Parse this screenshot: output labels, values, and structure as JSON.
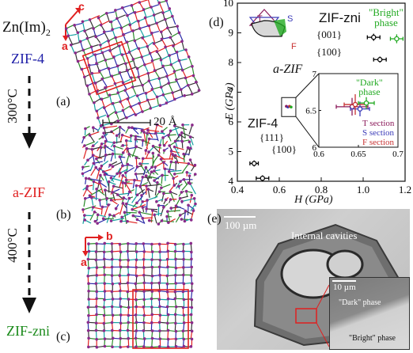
{
  "left": {
    "formula": "Zn(Im)",
    "formula_sub": "2",
    "phase_top": "ZIF-4",
    "temp1": "300°C",
    "phase_mid": "a-ZIF",
    "temp2": "400°C",
    "phase_bottom": "ZIF-zni",
    "axis_c": "c",
    "axis_a": "a",
    "axis_b": "b",
    "panel_a": "(a)",
    "panel_b": "(b)",
    "panel_c": "(c)",
    "scale_bar": "20 Å",
    "colors": {
      "blue": "#1f1fa8",
      "red": "#e02020",
      "green": "#1a8a1a"
    }
  },
  "panel_d": {
    "label": "(d)",
    "zif_zni_label": "ZIF-zni",
    "bright_phase": "\"Bright\"\nphase",
    "zni_001": "{001}",
    "zni_100": "{100}",
    "a_zif_label": "a-ZIF",
    "dark_phase": "\"Dark\"\nphase",
    "zif4_label": "ZIF-4",
    "zif4_111": "{111}",
    "zif4_100": "{100}",
    "t_section": "T section",
    "s_section": "S section",
    "f_section": "F section",
    "tri_T": "T",
    "tri_S": "S",
    "tri_F": "F",
    "inset_xticks": [
      "0.6",
      "0.65",
      "0.7"
    ],
    "inset_yticks": [
      "7",
      "6.5",
      "6"
    ]
  },
  "chart_data": {
    "type": "scatter",
    "xlabel": "H (GPa)",
    "ylabel": "E (GPa)",
    "xlim": [
      0.4,
      1.2
    ],
    "ylim": [
      4,
      10
    ],
    "xticks": [
      "0.4",
      "0.6",
      "0.8",
      "1.0",
      "1.2"
    ],
    "yticks": [
      "4",
      "5",
      "6",
      "7",
      "8",
      "9",
      "10"
    ],
    "series": [
      {
        "name": "{001}",
        "x": [
          1.05
        ],
        "y": [
          8.85
        ],
        "xerr": 0.03,
        "yerr": 0.12,
        "color": "#000000"
      },
      {
        "name": "\"Bright\" phase",
        "x": [
          1.16
        ],
        "y": [
          8.8
        ],
        "xerr": 0.03,
        "yerr": 0.15,
        "color": "#22aa22"
      },
      {
        "name": "{100}",
        "x": [
          1.08
        ],
        "y": [
          8.1
        ],
        "xerr": 0.03,
        "yerr": 0.1,
        "color": "#000000"
      },
      {
        "name": "{111}",
        "x": [
          0.48
        ],
        "y": [
          4.6
        ],
        "xerr": 0.02,
        "yerr": 0.1,
        "color": "#000000"
      },
      {
        "name": "{100}",
        "x": [
          0.52
        ],
        "y": [
          4.1
        ],
        "xerr": 0.03,
        "yerr": 0.1,
        "color": "#000000"
      }
    ],
    "inset": {
      "xlim": [
        0.6,
        0.7
      ],
      "ylim": [
        6,
        7
      ],
      "series": [
        {
          "name": "T section",
          "x": 0.642,
          "y": 6.55,
          "xerr": 0.02,
          "yerr": 0.12,
          "color": "#8b1a5a"
        },
        {
          "name": "S section",
          "x": 0.652,
          "y": 6.52,
          "xerr": 0.012,
          "yerr": 0.1,
          "color": "#3a3ab8"
        },
        {
          "name": "F section",
          "x": 0.646,
          "y": 6.58,
          "xerr": 0.014,
          "yerr": 0.14,
          "color": "#c83232"
        },
        {
          "name": "\"Dark\" phase",
          "x": 0.66,
          "y": 6.6,
          "xerr": 0.01,
          "yerr": 0.08,
          "color": "#22aa22"
        }
      ]
    }
  },
  "panel_e": {
    "label": "(e)",
    "scale_main": "100 µm",
    "internal_cavities": "Internal cavities",
    "scale_inset": "10 µm",
    "dark_phase": "\"Dark\" phase",
    "bright_phase": "\"Bright\" phase"
  }
}
